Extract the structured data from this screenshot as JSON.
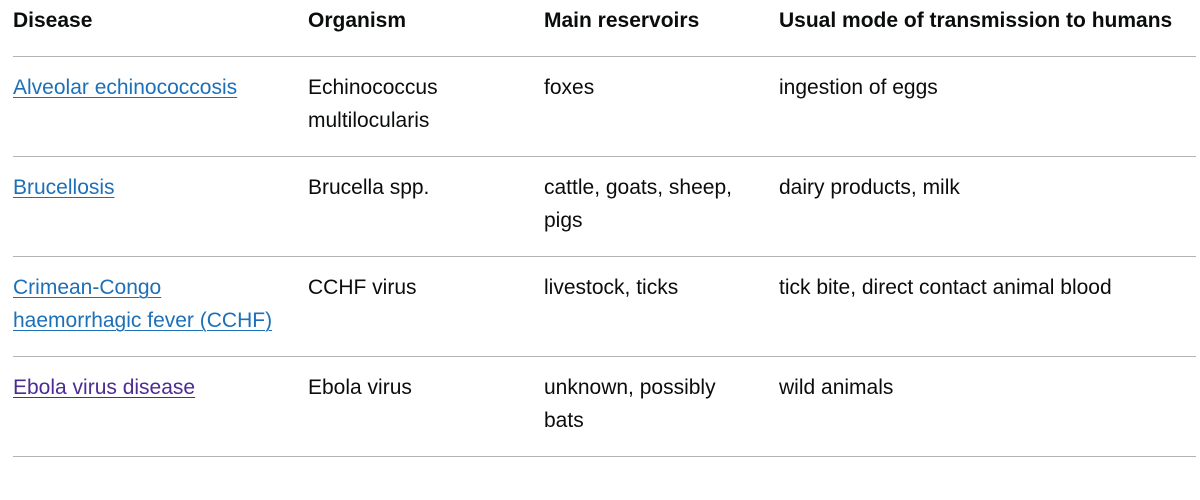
{
  "headers": {
    "disease": "Disease",
    "organism": "Organism",
    "reservoirs": "Main reservoirs",
    "transmission": "Usual mode of transmission to humans"
  },
  "rows": [
    {
      "disease": "Alveolar echinococcosis",
      "organism": "Echinococcus multilocularis",
      "reservoirs": "foxes",
      "transmission": "ingestion of eggs"
    },
    {
      "disease": "Brucellosis",
      "organism": "Brucella spp.",
      "reservoirs": "cattle, goats, sheep, pigs",
      "transmission": "dairy products, milk"
    },
    {
      "disease": "Crimean-Congo haemorrhagic fever (CCHF)",
      "organism": "CCHF virus",
      "reservoirs": "livestock, ticks",
      "transmission": "tick bite, direct contact animal blood"
    },
    {
      "disease": "Ebola virus disease",
      "organism": "Ebola virus",
      "reservoirs": "unknown, possibly bats",
      "transmission": "wild animals"
    }
  ],
  "colors": {
    "link": "#1d70b8",
    "visited_link": "#4c2c92",
    "text": "#0b0c0c",
    "border": "#b1b4b6"
  }
}
